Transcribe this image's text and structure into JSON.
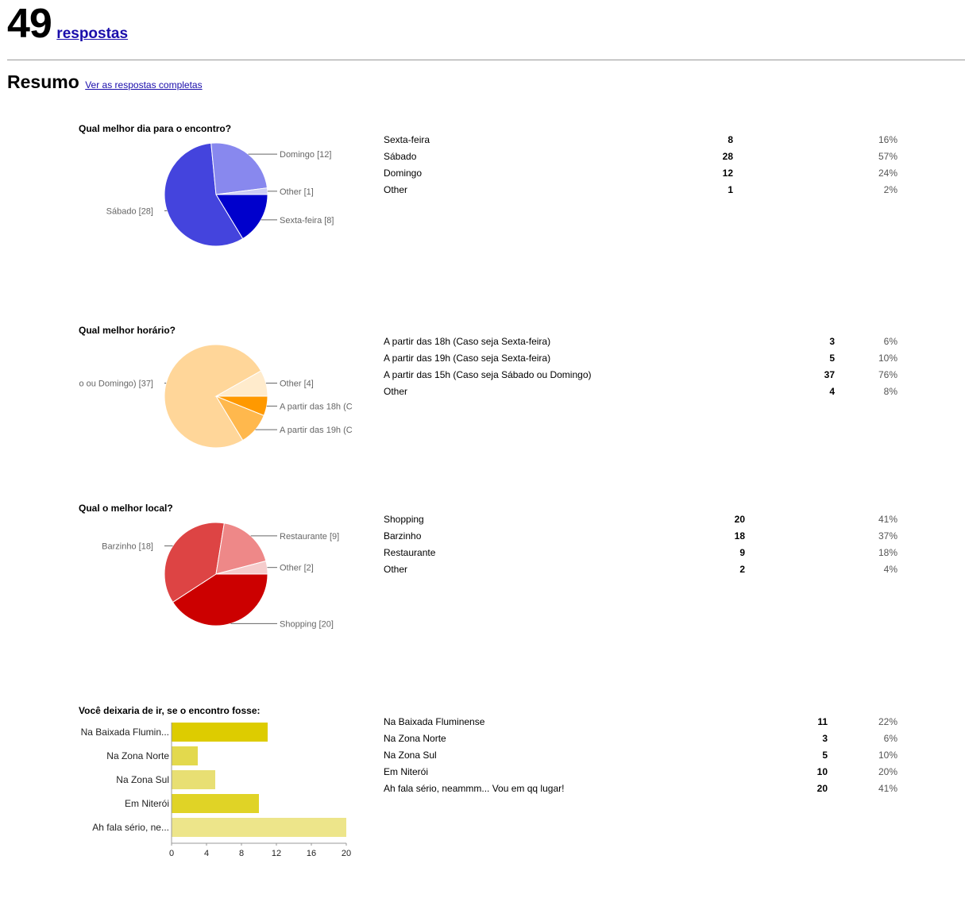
{
  "header": {
    "count": "49",
    "count_label": "respostas"
  },
  "summary": {
    "title": "Resumo",
    "link": "Ver as respostas completas"
  },
  "chart_data": [
    {
      "type": "pie",
      "title": "Qual melhor dia para o encontro?",
      "slices": [
        {
          "name": "Sexta-feira",
          "value": 8,
          "percent": "16%",
          "color": "#0000cc",
          "label": "Sexta-feira [8]"
        },
        {
          "name": "Sábado",
          "value": 28,
          "percent": "57%",
          "color": "#4444dd",
          "label": "Sábado [28]"
        },
        {
          "name": "Domingo",
          "value": 12,
          "percent": "24%",
          "color": "#8888ee",
          "label": "Domingo [12]"
        },
        {
          "name": "Other",
          "value": 1,
          "percent": "2%",
          "color": "#ccccf5",
          "label": "Other [1]"
        }
      ]
    },
    {
      "type": "pie",
      "title": "Qual melhor horário?",
      "slices": [
        {
          "name": "A partir das 18h (Caso seja Sexta-feira)",
          "value": 3,
          "percent": "6%",
          "color": "#ff9900",
          "label": "A partir das 18h (C"
        },
        {
          "name": "A partir das 19h (Caso seja Sexta-feira)",
          "value": 5,
          "percent": "10%",
          "color": "#ffb84d",
          "label": "A partir das 19h (C"
        },
        {
          "name": "A partir das 15h (Caso seja Sábado ou Domingo)",
          "value": 37,
          "percent": "76%",
          "color": "#ffd699",
          "label": "o ou Domingo) [37]"
        },
        {
          "name": "Other",
          "value": 4,
          "percent": "8%",
          "color": "#ffebcc",
          "label": "Other [4]"
        }
      ]
    },
    {
      "type": "pie",
      "title": "Qual o melhor local?",
      "slices": [
        {
          "name": "Shopping",
          "value": 20,
          "percent": "41%",
          "color": "#cc0000",
          "label": "Shopping [20]"
        },
        {
          "name": "Barzinho",
          "value": 18,
          "percent": "37%",
          "color": "#dd4444",
          "label": "Barzinho [18]"
        },
        {
          "name": "Restaurante",
          "value": 9,
          "percent": "18%",
          "color": "#ee8888",
          "label": "Restaurante [9]"
        },
        {
          "name": "Other",
          "value": 2,
          "percent": "4%",
          "color": "#f5cccc",
          "label": "Other [2]"
        }
      ]
    },
    {
      "type": "bar",
      "orientation": "horizontal",
      "title": "Você deixaria de ir, se o encontro fosse:",
      "xlim": [
        0,
        20
      ],
      "xticks": [
        "0",
        "4",
        "8",
        "12",
        "16",
        "20"
      ],
      "grid": false,
      "bars": [
        {
          "name": "Na Baixada Fluminense",
          "label": "Na Baixada Flumin...",
          "value": 11,
          "percent": "22%",
          "color": "#ddcc00"
        },
        {
          "name": "Na Zona Norte",
          "label": "Na Zona Norte",
          "value": 3,
          "percent": "6%",
          "color": "#e3d94d"
        },
        {
          "name": "Na Zona Sul",
          "label": "Na Zona Sul",
          "value": 5,
          "percent": "10%",
          "color": "#e8df73"
        },
        {
          "name": "Em Niterói",
          "label": "Em Niterói",
          "value": 10,
          "percent": "20%",
          "color": "#e0d326"
        },
        {
          "name": "Ah fala sério, neammm... Vou em qq lugar!",
          "label": "Ah fala sério, ne...",
          "value": 20,
          "percent": "41%",
          "color": "#ede58a"
        }
      ]
    }
  ]
}
